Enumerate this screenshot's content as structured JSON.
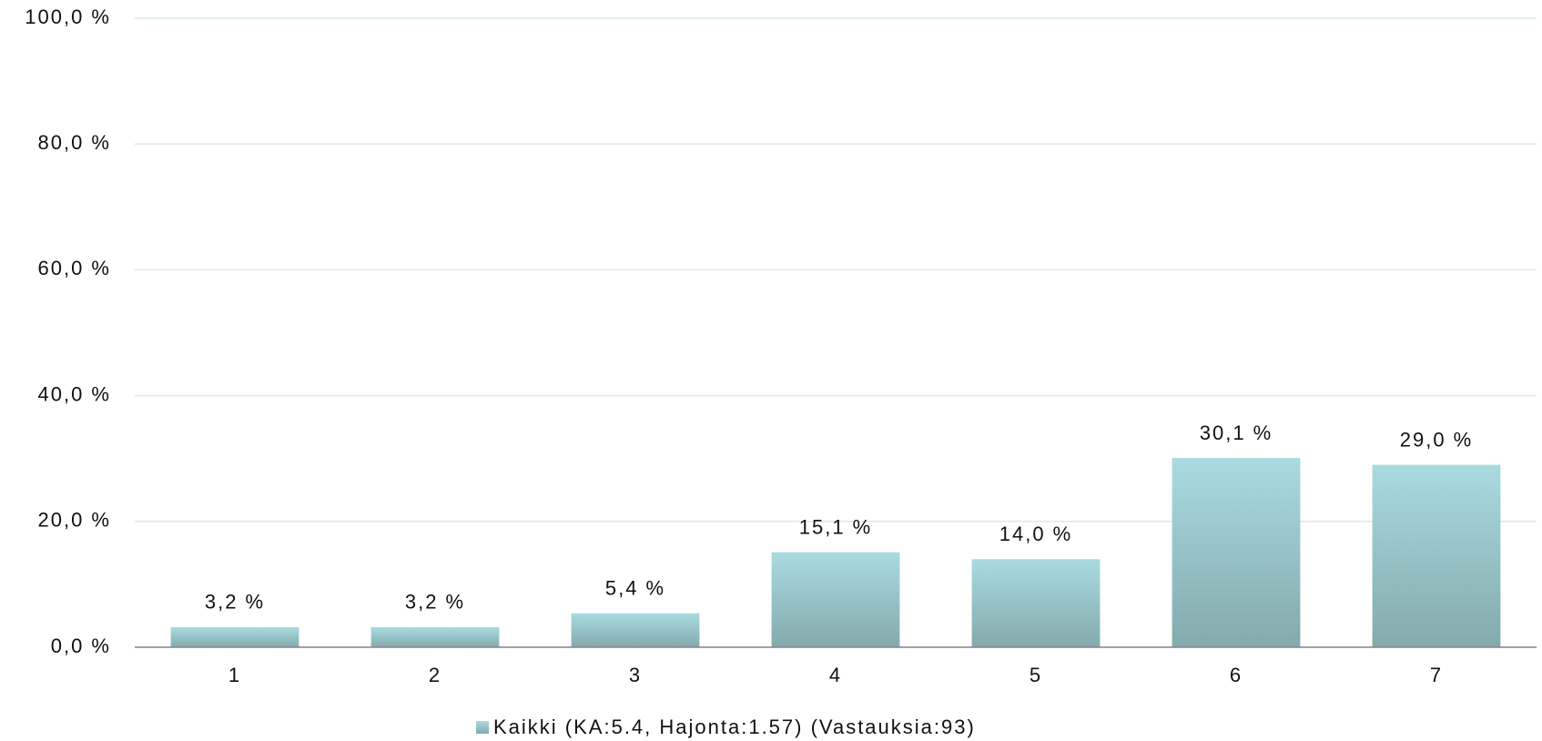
{
  "chart_data": {
    "type": "bar",
    "categories": [
      "1",
      "2",
      "3",
      "4",
      "5",
      "6",
      "7"
    ],
    "series": [
      {
        "name": "Kaikki (KA:5.4, Hajonta:1.57) (Vastauksia:93)",
        "color": "#a9dbe0",
        "values": [
          3.2,
          3.2,
          5.4,
          15.1,
          14.0,
          30.1,
          29.0
        ],
        "value_labels": [
          "3,2 %",
          "3,2 %",
          "5,4 %",
          "15,1 %",
          "14,0 %",
          "30,1 %",
          "29,0 %"
        ]
      }
    ],
    "ylim": [
      0,
      100
    ],
    "yticks": [
      {
        "value": 0,
        "label": "0,0 %"
      },
      {
        "value": 20,
        "label": "20,0 %"
      },
      {
        "value": 40,
        "label": "40,0 %"
      },
      {
        "value": 60,
        "label": "60,0 %"
      },
      {
        "value": 80,
        "label": "80,0 %"
      },
      {
        "value": 100,
        "label": "100,0 %"
      }
    ],
    "grid": true,
    "legend": "bottom"
  }
}
